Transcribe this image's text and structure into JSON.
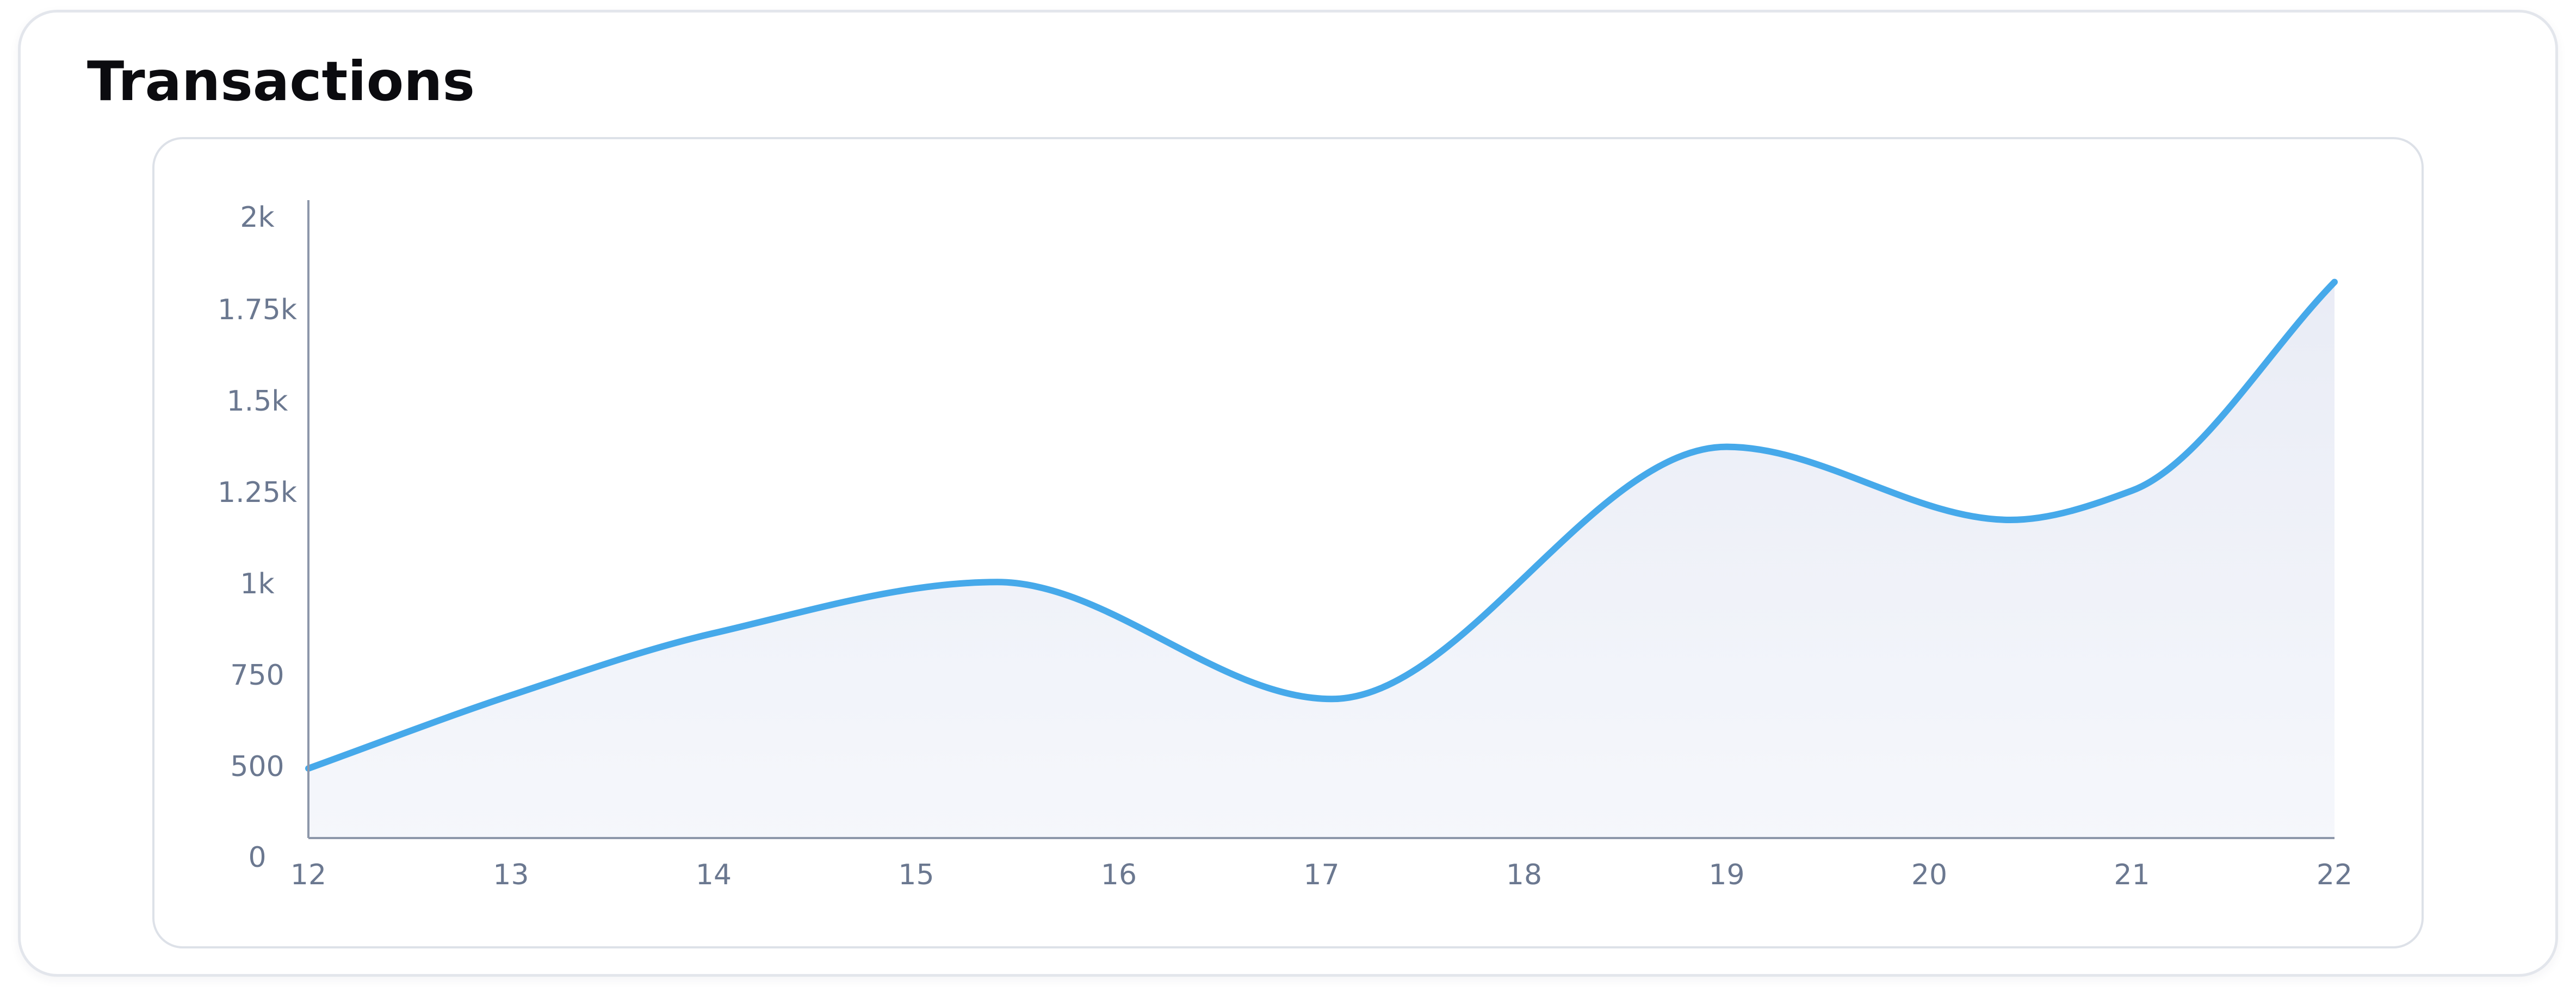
{
  "chart_data": {
    "type": "area",
    "title": "Transactions",
    "subtitle": "",
    "xlabel": "",
    "ylabel": "",
    "x_ticks": [
      "12",
      "13",
      "14",
      "15",
      "16",
      "17",
      "18",
      "19",
      "20",
      "21",
      "22"
    ],
    "y_ticks": [
      {
        "value": 0,
        "label": "0"
      },
      {
        "value": 500,
        "label": "500"
      },
      {
        "value": 750,
        "label": "750"
      },
      {
        "value": 1000,
        "label": "1k"
      },
      {
        "value": 1250,
        "label": "1.25k"
      },
      {
        "value": 1500,
        "label": "1.5k"
      },
      {
        "value": 1750,
        "label": "1.75k"
      },
      {
        "value": 2000,
        "label": "2k"
      }
    ],
    "xlim": [
      12,
      22
    ],
    "series": [
      {
        "points": [
          {
            "x": 12,
            "y": 500
          },
          {
            "x": 13,
            "y": 700
          },
          {
            "x": 14,
            "y": 870
          },
          {
            "x": 15.4,
            "y": 1010
          },
          {
            "x": 17.05,
            "y": 690
          },
          {
            "x": 19,
            "y": 1380
          },
          {
            "x": 20.4,
            "y": 1180
          },
          {
            "x": 21,
            "y": 1260
          },
          {
            "x": 22,
            "y": 1830
          }
        ]
      }
    ],
    "grid": false,
    "legend": "none",
    "colors": {
      "line": "#46a9ea",
      "area": "#eef1f8",
      "axis": "#8d97aa",
      "tick_text": "#6b7890"
    }
  }
}
